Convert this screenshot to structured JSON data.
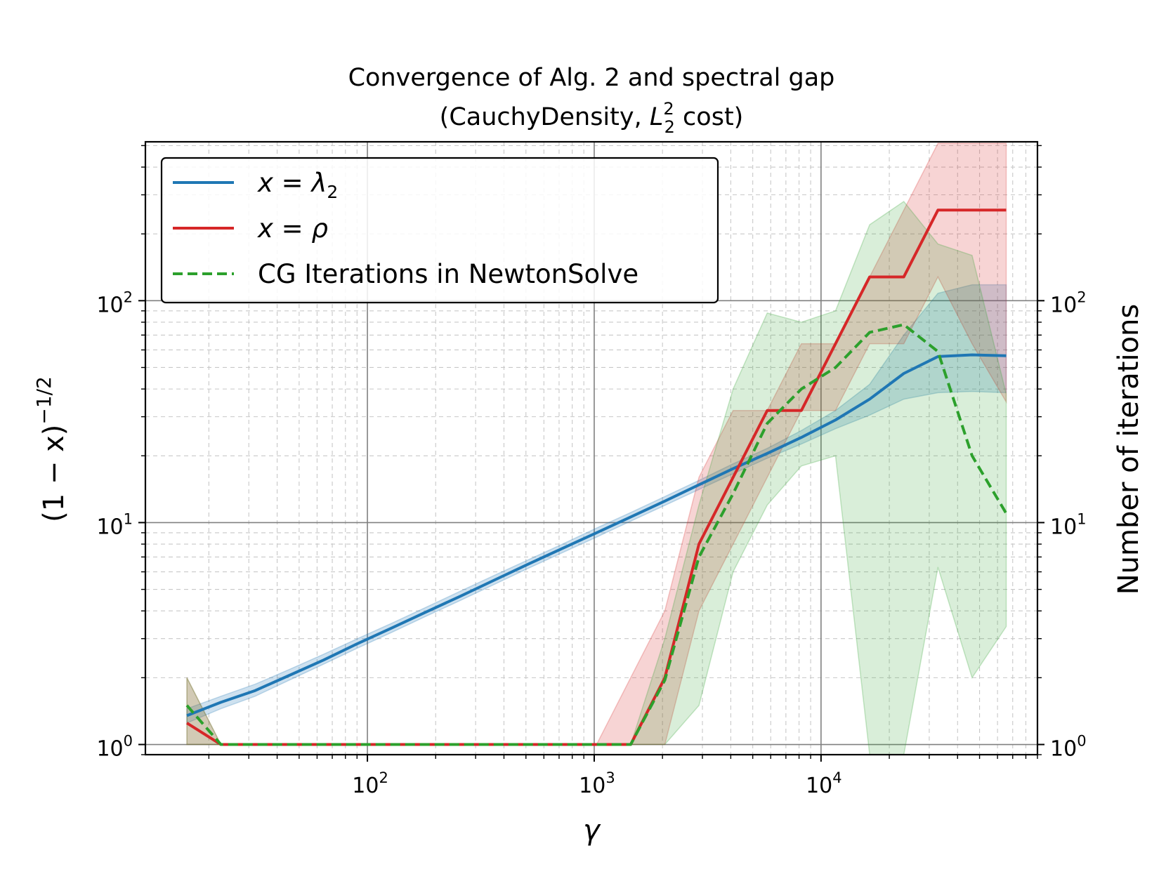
{
  "chart_data": {
    "type": "line",
    "title": "Convergence of Alg. 2 and spectral gap",
    "subtitle": {
      "prefix": "(CauchyDensity, ",
      "symbol": "L",
      "sub": "2",
      "sup": "2",
      "suffix": " cost)"
    },
    "xlabel": "γ",
    "ylabel": {
      "base": "(1 − x)",
      "exponent": "−1/2"
    },
    "y2label": "Number of iterations",
    "xscale": "log",
    "yscale": "log",
    "xlim": [
      10.5,
      90000
    ],
    "ylim": [
      0.9,
      520
    ],
    "grid": true,
    "x_ticks": [
      {
        "value": 100,
        "base": "10",
        "exp": "2"
      },
      {
        "value": 1000,
        "base": "10",
        "exp": "3"
      },
      {
        "value": 10000,
        "base": "10",
        "exp": "4"
      }
    ],
    "y_ticks": [
      {
        "value": 1,
        "base": "10",
        "exp": "0"
      },
      {
        "value": 10,
        "base": "10",
        "exp": "1"
      },
      {
        "value": 100,
        "base": "10",
        "exp": "2"
      }
    ],
    "legend_position": "top-left",
    "series": [
      {
        "name": "x = λ2",
        "legend": {
          "var": "x",
          "eq": " = ",
          "sym": "λ",
          "sub": "2"
        },
        "color": "#1f77b4",
        "dash": false,
        "x": [
          16,
          22.6,
          32,
          45.3,
          64,
          90.5,
          128,
          181,
          256,
          362,
          512,
          724,
          1024,
          1448,
          2048,
          2896,
          4096,
          5793,
          8192,
          11585,
          16384,
          23170,
          32768,
          46341,
          65536
        ],
        "y": [
          1.35,
          1.55,
          1.75,
          2.05,
          2.4,
          2.85,
          3.35,
          3.95,
          4.65,
          5.5,
          6.5,
          7.65,
          9.0,
          10.6,
          12.5,
          14.8,
          17.5,
          20.5,
          24.2,
          29.0,
          36.0,
          47.0,
          56.0,
          57.0,
          56.5
        ],
        "band_low": [
          1.25,
          1.45,
          1.65,
          1.95,
          2.3,
          2.72,
          3.2,
          3.78,
          4.45,
          5.26,
          6.22,
          7.32,
          8.6,
          10.15,
          11.95,
          14.1,
          16.6,
          19.5,
          22.6,
          26.5,
          30.5,
          36.0,
          38.5,
          39.0,
          38.5
        ],
        "band_high": [
          1.45,
          1.65,
          1.87,
          2.18,
          2.55,
          3.0,
          3.52,
          4.15,
          4.9,
          5.78,
          6.8,
          8.0,
          9.45,
          11.1,
          13.1,
          15.5,
          18.4,
          21.6,
          26.0,
          32.0,
          42.0,
          70.0,
          108.0,
          118.0,
          118.0
        ]
      },
      {
        "name": "x = ρ",
        "legend": {
          "var": "x",
          "eq": " = ",
          "sym": "ρ",
          "sub": ""
        },
        "color": "#d62728",
        "dash": false,
        "x": [
          16,
          22.6,
          32,
          45.3,
          64,
          90.5,
          128,
          181,
          256,
          362,
          512,
          724,
          1024,
          1448,
          2048,
          2896,
          4096,
          5793,
          8192,
          11585,
          16384,
          23170,
          32768,
          46341,
          65536
        ],
        "y": [
          1.25,
          1,
          1,
          1,
          1,
          1,
          1,
          1,
          1,
          1,
          1,
          1,
          1,
          1,
          2,
          8,
          16,
          32,
          32,
          64,
          128,
          128,
          256,
          256,
          256
        ],
        "band_low": [
          1,
          1,
          1,
          1,
          1,
          1,
          1,
          1,
          1,
          1,
          1,
          1,
          1,
          1,
          1,
          4,
          8,
          16,
          32,
          32,
          64,
          64,
          128,
          64,
          35
        ],
        "band_high": [
          2,
          1,
          1,
          1,
          1,
          1,
          1,
          1,
          1,
          1,
          1,
          1,
          1,
          2,
          4,
          16,
          32,
          32,
          64,
          64,
          128,
          256,
          512,
          512,
          512
        ]
      },
      {
        "name": "CG Iterations in NewtonSolve",
        "legend": {
          "var": "",
          "eq": "",
          "sym": "",
          "sub": "",
          "text": "CG Iterations in NewtonSolve"
        },
        "color": "#2ca02c",
        "dash": true,
        "x": [
          16,
          22.6,
          32,
          45.3,
          64,
          90.5,
          128,
          181,
          256,
          362,
          512,
          724,
          1024,
          1448,
          2048,
          2896,
          4096,
          5793,
          8192,
          11585,
          16384,
          23170,
          32768,
          46341,
          65536
        ],
        "y": [
          1.5,
          1,
          1,
          1,
          1,
          1,
          1,
          1,
          1,
          1,
          1,
          1,
          1,
          1,
          1.95,
          7.0,
          13.5,
          28.0,
          40.0,
          50.0,
          72.0,
          78.0,
          59.0,
          20.0,
          11.0
        ],
        "band_low": [
          1,
          1,
          1,
          1,
          1,
          1,
          1,
          1,
          1,
          1,
          1,
          1,
          1,
          1,
          1,
          1.5,
          6.0,
          12.0,
          18.0,
          20.0,
          0.9,
          0.9,
          6.3,
          2.0,
          3.4
        ],
        "band_high": [
          2,
          1,
          1,
          1,
          1,
          1,
          1,
          1,
          1,
          1,
          1,
          1,
          1,
          1,
          3.0,
          12.0,
          40.0,
          88.0,
          80.0,
          90.0,
          220.0,
          280.0,
          180.0,
          160.0,
          38.0
        ]
      }
    ]
  }
}
